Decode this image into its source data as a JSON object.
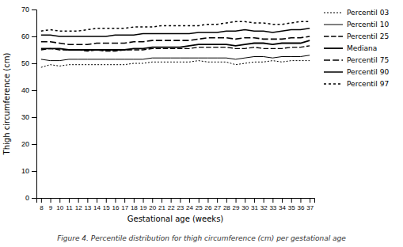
{
  "chart_data": {
    "type": "line",
    "x": [
      8,
      9,
      10,
      11,
      12,
      13,
      14,
      15,
      16,
      17,
      18,
      19,
      20,
      21,
      22,
      23,
      24,
      25,
      26,
      27,
      28,
      29,
      30,
      31,
      32,
      33,
      34,
      35,
      36,
      37
    ],
    "series": [
      {
        "name": "Percentil 03",
        "color": "#000000",
        "line_style": "dotted",
        "values": [
          48.5,
          49.5,
          49.0,
          49.5,
          49.5,
          49.5,
          49.5,
          49.5,
          49.5,
          49.5,
          50.0,
          50.0,
          50.5,
          50.5,
          50.5,
          50.5,
          50.5,
          51.0,
          50.5,
          50.5,
          50.5,
          49.5,
          50.0,
          50.5,
          50.5,
          51.0,
          50.5,
          51.0,
          51.0,
          51.0
        ]
      },
      {
        "name": "Percentil 10",
        "color": "#000000",
        "line_style": "solid",
        "values": [
          51.5,
          51.0,
          51.0,
          51.5,
          51.5,
          51.5,
          51.5,
          51.5,
          51.5,
          51.5,
          51.5,
          51.5,
          52.0,
          52.0,
          52.0,
          52.0,
          52.0,
          52.0,
          52.0,
          52.0,
          52.0,
          51.5,
          52.0,
          52.5,
          52.5,
          52.0,
          52.5,
          52.5,
          52.5,
          53.0
        ]
      },
      {
        "name": "Percentil 25",
        "color": "#000000",
        "line_style": "dashed",
        "values": [
          55.0,
          55.5,
          55.0,
          55.0,
          55.0,
          54.5,
          55.0,
          54.5,
          54.5,
          55.0,
          55.0,
          55.0,
          55.5,
          55.5,
          55.5,
          55.5,
          55.5,
          56.0,
          56.0,
          56.0,
          56.0,
          55.5,
          55.5,
          56.0,
          55.5,
          55.5,
          55.5,
          56.0,
          56.0,
          56.5
        ]
      },
      {
        "name": "Mediana",
        "color": "#000000",
        "line_style": "solid",
        "values": [
          55.5,
          55.5,
          55.5,
          55.0,
          55.0,
          55.0,
          55.0,
          55.0,
          55.0,
          55.0,
          55.5,
          55.5,
          56.0,
          56.0,
          56.0,
          56.0,
          56.5,
          57.0,
          57.0,
          57.0,
          57.0,
          56.5,
          57.0,
          57.5,
          57.5,
          57.0,
          57.5,
          57.5,
          57.5,
          58.5
        ]
      },
      {
        "name": "Percentil 75",
        "color": "#000000",
        "line_style": "dashed",
        "values": [
          58.0,
          58.0,
          57.5,
          57.0,
          57.0,
          57.0,
          57.5,
          57.5,
          57.5,
          57.5,
          58.0,
          58.0,
          58.5,
          58.5,
          58.5,
          58.5,
          58.5,
          59.0,
          59.5,
          59.5,
          59.5,
          59.0,
          59.5,
          59.5,
          59.0,
          59.0,
          59.0,
          59.5,
          59.5,
          60.0
        ]
      },
      {
        "name": "Percentil 90",
        "color": "#000000",
        "line_style": "solid",
        "values": [
          60.5,
          60.5,
          60.0,
          60.0,
          60.0,
          60.0,
          60.0,
          60.0,
          60.5,
          60.5,
          60.5,
          61.0,
          61.0,
          61.0,
          61.0,
          61.0,
          61.0,
          61.5,
          61.5,
          61.5,
          62.0,
          62.0,
          62.5,
          62.0,
          62.0,
          61.5,
          62.0,
          62.5,
          62.5,
          63.0
        ]
      },
      {
        "name": "Percentil 97",
        "color": "#000000",
        "line_style": "dotted",
        "values": [
          62.0,
          62.5,
          62.0,
          62.0,
          62.0,
          62.5,
          63.0,
          63.0,
          63.0,
          63.0,
          63.5,
          63.5,
          63.5,
          64.0,
          64.0,
          64.0,
          64.0,
          64.0,
          64.5,
          64.5,
          65.0,
          65.5,
          65.5,
          65.0,
          65.0,
          64.5,
          64.5,
          65.0,
          65.5,
          65.5
        ]
      }
    ],
    "xlabel": "Gestational age (weeks)",
    "ylabel": "Thigh circumference (cm)",
    "caption": "Figure 4. Percentile distribution for thigh circumference (cm) per gestational age",
    "xlim": [
      7.5,
      37.5
    ],
    "xticks": [
      8,
      9,
      10,
      11,
      12,
      13,
      14,
      15,
      16,
      17,
      18,
      19,
      20,
      21,
      22,
      23,
      24,
      25,
      26,
      27,
      28,
      29,
      30,
      31,
      32,
      33,
      34,
      35,
      36,
      37
    ],
    "ylim": [
      0,
      70
    ],
    "yticks": [
      0,
      10,
      20,
      30,
      40,
      50,
      60,
      70
    ],
    "grid": false,
    "legend": "right"
  }
}
